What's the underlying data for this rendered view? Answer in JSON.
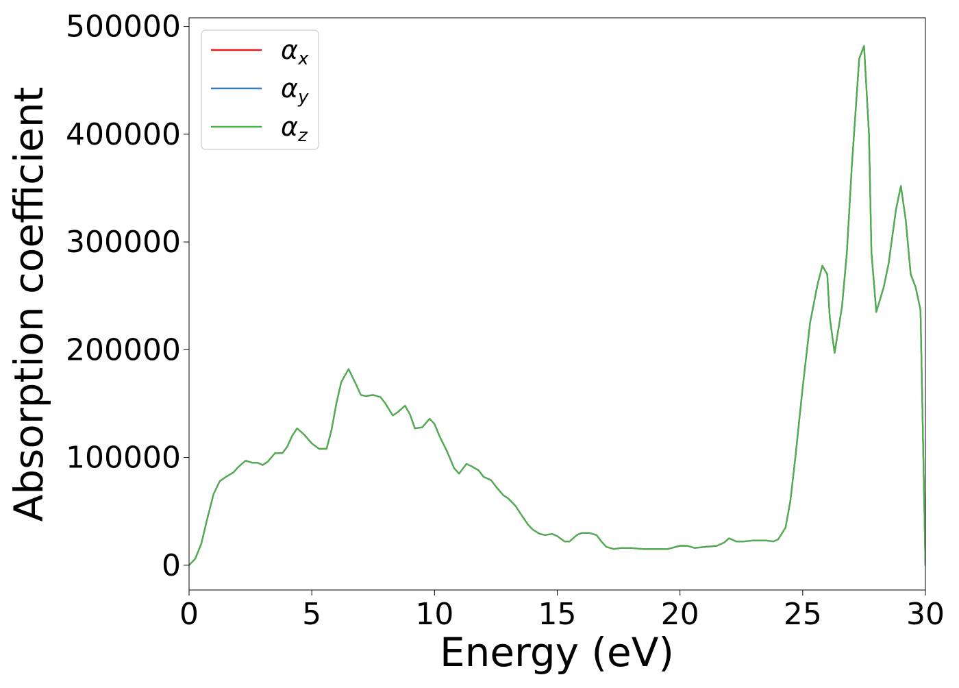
{
  "chart_data": {
    "type": "line",
    "title": "",
    "xlabel": "Energy (eV)",
    "ylabel": "Absorption coefficient",
    "xlim": [
      0,
      30
    ],
    "ylim": [
      -23000,
      508000
    ],
    "xticks": [
      0,
      5,
      10,
      15,
      20,
      25,
      30
    ],
    "xtick_labels": [
      "0",
      "5",
      "10",
      "15",
      "20",
      "25",
      "30"
    ],
    "yticks": [
      0,
      100000,
      200000,
      300000,
      400000,
      500000
    ],
    "ytick_labels": [
      "0",
      "100000",
      "200000",
      "300000",
      "400000",
      "500000"
    ],
    "grid": false,
    "legend_position": "top-left",
    "series": [
      {
        "name": "α",
        "subscript": "x",
        "color": "#e41a1c"
      },
      {
        "name": "α",
        "subscript": "y",
        "color": "#377eb8"
      },
      {
        "name": "α",
        "subscript": "z",
        "color": "#4daf4a"
      }
    ],
    "x": [
      0,
      0.25,
      0.5,
      0.75,
      1.0,
      1.25,
      1.5,
      1.8,
      2.0,
      2.3,
      2.6,
      2.8,
      3.0,
      3.2,
      3.5,
      3.8,
      4.0,
      4.2,
      4.4,
      4.7,
      5.0,
      5.3,
      5.6,
      5.8,
      6.0,
      6.2,
      6.5,
      6.8,
      7.0,
      7.2,
      7.5,
      7.8,
      8.0,
      8.3,
      8.5,
      8.8,
      9.0,
      9.2,
      9.5,
      9.8,
      10.0,
      10.2,
      10.5,
      10.8,
      11.0,
      11.3,
      11.5,
      11.8,
      12.0,
      12.3,
      12.5,
      12.8,
      13.0,
      13.3,
      13.5,
      13.8,
      14.0,
      14.3,
      14.5,
      14.8,
      15.0,
      15.3,
      15.5,
      15.8,
      16.0,
      16.3,
      16.6,
      16.8,
      17.0,
      17.3,
      17.6,
      18.0,
      18.5,
      19.0,
      19.5,
      20.0,
      20.3,
      20.6,
      21.0,
      21.5,
      21.8,
      22.0,
      22.3,
      22.6,
      23.0,
      23.5,
      23.8,
      24.0,
      24.3,
      24.5,
      24.7,
      25.0,
      25.3,
      25.6,
      25.8,
      26.0,
      26.1,
      26.3,
      26.6,
      26.8,
      27.0,
      27.3,
      27.5,
      27.7,
      27.8,
      28.0,
      28.3,
      28.5,
      28.8,
      29.0,
      29.2,
      29.4,
      29.6,
      29.8,
      30.0
    ],
    "y": [
      0,
      6000,
      20000,
      44000,
      66000,
      78000,
      82000,
      86000,
      91000,
      97000,
      95000,
      95000,
      93000,
      96000,
      104000,
      104000,
      110000,
      120000,
      127000,
      121000,
      113000,
      108000,
      108000,
      125000,
      150000,
      170000,
      182000,
      168000,
      158000,
      157000,
      158000,
      156000,
      150000,
      139000,
      142000,
      148000,
      140000,
      127000,
      128000,
      136000,
      131000,
      120000,
      106000,
      90000,
      85000,
      94000,
      92000,
      88000,
      82000,
      79000,
      73000,
      65000,
      62000,
      55000,
      48000,
      38000,
      33000,
      29000,
      28000,
      29000,
      27000,
      22000,
      22000,
      28000,
      30000,
      30000,
      28000,
      22000,
      17000,
      15000,
      16000,
      16000,
      15000,
      15000,
      15000,
      18000,
      18000,
      16000,
      17000,
      18000,
      21000,
      25000,
      22000,
      22000,
      23000,
      23000,
      22000,
      24000,
      35000,
      60000,
      100000,
      165000,
      225000,
      260000,
      278000,
      270000,
      230000,
      197000,
      240000,
      290000,
      370000,
      470000,
      482000,
      400000,
      290000,
      235000,
      258000,
      280000,
      330000,
      352000,
      320000,
      270000,
      258000,
      237000,
      0
    ]
  }
}
